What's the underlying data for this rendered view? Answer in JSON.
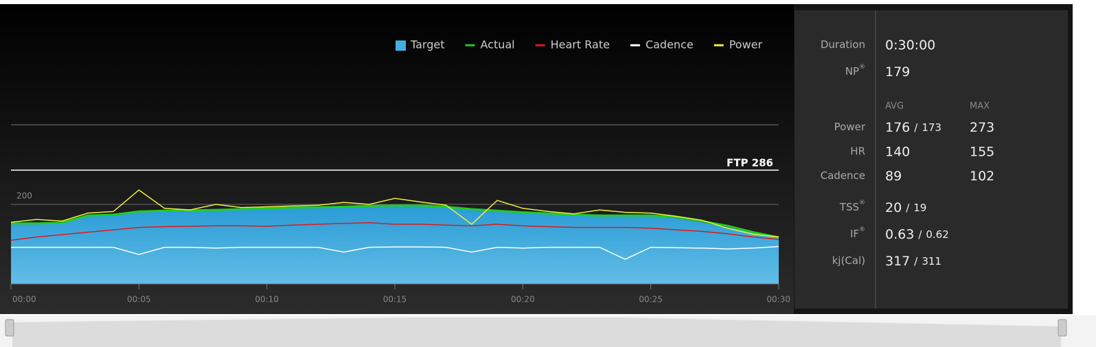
{
  "chart_data": {
    "type": "line",
    "x": [
      0,
      1,
      2,
      3,
      4,
      5,
      6,
      7,
      8,
      9,
      10,
      11,
      12,
      13,
      14,
      15,
      16,
      17,
      18,
      19,
      20,
      21,
      22,
      23,
      24,
      25,
      26,
      27,
      28,
      29,
      30
    ],
    "xlim": [
      0,
      30
    ],
    "xticks": [
      {
        "value": 0,
        "label": "00:00"
      },
      {
        "value": 5,
        "label": "00:05"
      },
      {
        "value": 10,
        "label": "00:10"
      },
      {
        "value": 15,
        "label": "00:15"
      },
      {
        "value": 20,
        "label": "00:20"
      },
      {
        "value": 25,
        "label": "00:25"
      },
      {
        "value": 30,
        "label": "00:30"
      }
    ],
    "ylim": [
      0,
      400
    ],
    "yticks": [
      200
    ],
    "grid": true,
    "annotations": [
      {
        "text": "FTP 286",
        "value": 286
      }
    ],
    "series": [
      {
        "name": "Target",
        "color": "#45aee0",
        "kind": "area",
        "values": [
          150,
          150,
          152,
          170,
          172,
          180,
          182,
          183,
          184,
          186,
          188,
          190,
          191,
          192,
          194,
          195,
          195,
          192,
          186,
          182,
          178,
          175,
          172,
          170,
          170,
          170,
          165,
          155,
          143,
          128,
          115
        ]
      },
      {
        "name": "Actual",
        "color": "#22cc22",
        "kind": "line",
        "values": [
          152,
          152,
          154,
          172,
          174,
          182,
          184,
          185,
          186,
          188,
          190,
          192,
          193,
          194,
          196,
          197,
          197,
          194,
          188,
          184,
          180,
          177,
          174,
          172,
          172,
          172,
          168,
          158,
          146,
          130,
          117
        ]
      },
      {
        "name": "Heart Rate",
        "color": "#dd1a1a",
        "kind": "line",
        "values": [
          110,
          118,
          124,
          130,
          136,
          142,
          144,
          145,
          146,
          146,
          145,
          148,
          150,
          152,
          154,
          150,
          150,
          148,
          146,
          150,
          146,
          144,
          142,
          142,
          142,
          140,
          136,
          132,
          126,
          118,
          112
        ]
      },
      {
        "name": "Cadence",
        "color": "#ffffff",
        "kind": "line",
        "values": [
          92,
          92,
          92,
          92,
          92,
          74,
          92,
          92,
          90,
          92,
          92,
          92,
          92,
          80,
          92,
          93,
          93,
          92,
          80,
          92,
          90,
          92,
          92,
          92,
          62,
          92,
          91,
          90,
          88,
          90,
          94
        ]
      },
      {
        "name": "Power",
        "color": "#f2f040",
        "kind": "line",
        "values": [
          155,
          162,
          158,
          178,
          182,
          236,
          190,
          186,
          200,
          192,
          194,
          196,
          198,
          205,
          200,
          215,
          206,
          198,
          150,
          210,
          190,
          182,
          176,
          186,
          180,
          178,
          170,
          160,
          140,
          125,
          118
        ]
      }
    ]
  },
  "stats": {
    "duration": {
      "label": "Duration",
      "value": "0:30:00"
    },
    "np": {
      "label": "NP",
      "mark": "®",
      "value": "179"
    },
    "headers": {
      "avg": "AVG",
      "max": "MAX"
    },
    "rows": [
      {
        "label": "Power",
        "avg": {
          "main": "176",
          "sep": "/",
          "sub": "173"
        },
        "max": "273"
      },
      {
        "label": "HR",
        "avg": {
          "main": "140"
        },
        "max": "155"
      },
      {
        "label": "Cadence",
        "avg": {
          "main": "89"
        },
        "max": "102"
      }
    ],
    "extra": [
      {
        "label": "TSS",
        "mark": "®",
        "value": {
          "main": "20",
          "sep": "/",
          "sub": "19"
        }
      },
      {
        "label": "IF",
        "mark": "®",
        "value": {
          "main": "0.63",
          "sep": "/",
          "sub": "0.62"
        }
      },
      {
        "label": "kj(Cal)",
        "value": {
          "main": "317",
          "sep": "/",
          "sub": "311"
        }
      }
    ]
  }
}
